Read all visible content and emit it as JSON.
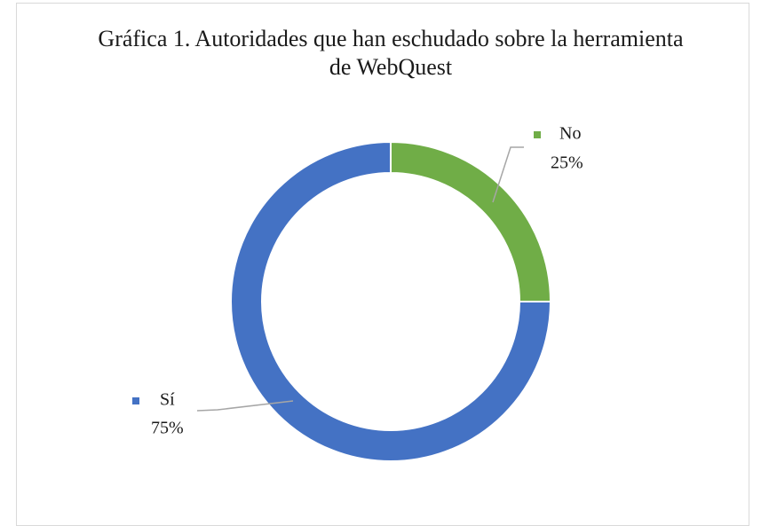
{
  "chart_data": {
    "type": "donut",
    "title": "Gráfica 1. Autoridades que han eschudado sobre la herramienta de WebQuest",
    "categories": [
      "No",
      "Sí"
    ],
    "values": [
      25,
      75
    ],
    "value_labels": [
      "25%",
      "75%"
    ],
    "colors": [
      "#70ad47",
      "#4472c4"
    ]
  }
}
